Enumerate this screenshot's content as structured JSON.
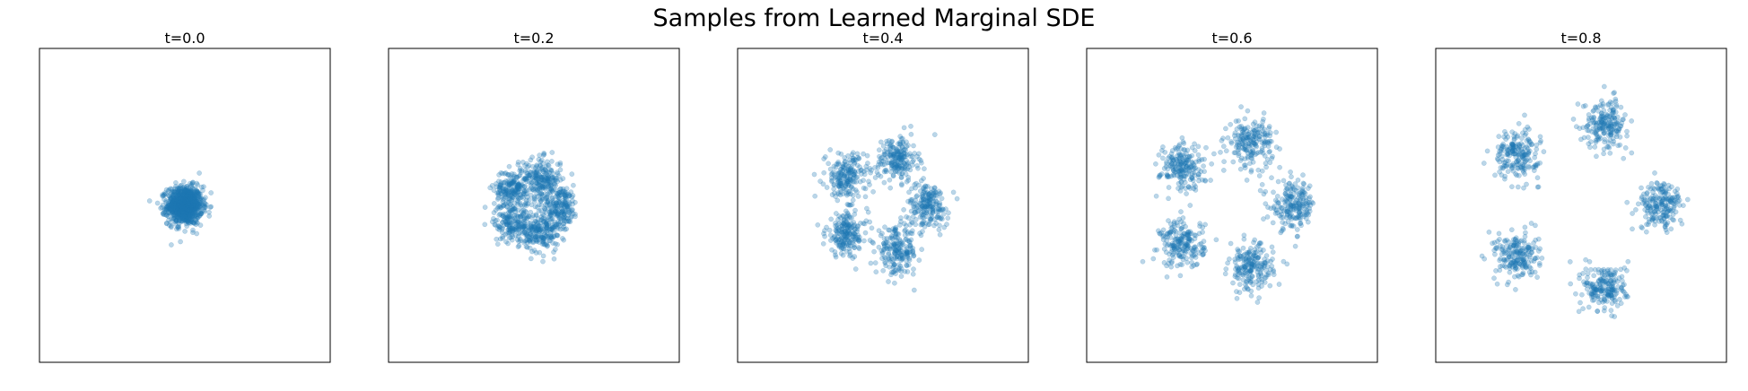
{
  "figure": {
    "suptitle": "Samples from Learned Marginal SDE"
  },
  "chart_data": [
    {
      "type": "scatter",
      "title": "t=0.0",
      "xlim": [
        -5,
        5
      ],
      "ylim": [
        -5,
        5
      ],
      "color": "#1f77b4",
      "alpha": 0.3,
      "xticks": "hidden",
      "yticks": "hidden",
      "clusters": [
        {
          "x": 0.0,
          "y": 0.0,
          "std": 0.3,
          "n": 1000
        }
      ]
    },
    {
      "type": "scatter",
      "title": "t=0.2",
      "xlim": [
        -5,
        5
      ],
      "ylim": [
        -5,
        5
      ],
      "color": "#1f77b4",
      "alpha": 0.3,
      "xticks": "hidden",
      "yticks": "hidden",
      "clusters": [
        {
          "x": 0.9,
          "y": 0.0,
          "std": 0.32,
          "n": 200
        },
        {
          "x": 0.28,
          "y": 0.86,
          "std": 0.32,
          "n": 200
        },
        {
          "x": -0.73,
          "y": 0.53,
          "std": 0.32,
          "n": 200
        },
        {
          "x": -0.73,
          "y": -0.53,
          "std": 0.32,
          "n": 200
        },
        {
          "x": 0.28,
          "y": -0.86,
          "std": 0.32,
          "n": 200
        }
      ]
    },
    {
      "type": "scatter",
      "title": "t=0.4",
      "xlim": [
        -5,
        5
      ],
      "ylim": [
        -5,
        5
      ],
      "color": "#1f77b4",
      "alpha": 0.3,
      "xticks": "hidden",
      "yticks": "hidden",
      "clusters": [
        {
          "x": 1.55,
          "y": 0.0,
          "std": 0.36,
          "n": 200
        },
        {
          "x": 0.48,
          "y": 1.47,
          "std": 0.36,
          "n": 200
        },
        {
          "x": -1.25,
          "y": 0.91,
          "std": 0.36,
          "n": 200
        },
        {
          "x": -1.25,
          "y": -0.91,
          "std": 0.36,
          "n": 200
        },
        {
          "x": 0.48,
          "y": -1.47,
          "std": 0.36,
          "n": 200
        }
      ]
    },
    {
      "type": "scatter",
      "title": "t=0.6",
      "xlim": [
        -5,
        5
      ],
      "ylim": [
        -5,
        5
      ],
      "color": "#1f77b4",
      "alpha": 0.3,
      "xticks": "hidden",
      "yticks": "hidden",
      "clusters": [
        {
          "x": 2.1,
          "y": 0.0,
          "std": 0.38,
          "n": 200
        },
        {
          "x": 0.65,
          "y": 2.0,
          "std": 0.38,
          "n": 200
        },
        {
          "x": -1.7,
          "y": 1.23,
          "std": 0.38,
          "n": 200
        },
        {
          "x": -1.7,
          "y": -1.23,
          "std": 0.38,
          "n": 200
        },
        {
          "x": 0.65,
          "y": -2.0,
          "std": 0.38,
          "n": 200
        }
      ]
    },
    {
      "type": "scatter",
      "title": "t=0.8",
      "xlim": [
        -5,
        5
      ],
      "ylim": [
        -5,
        5
      ],
      "color": "#1f77b4",
      "alpha": 0.3,
      "xticks": "hidden",
      "yticks": "hidden",
      "clusters": [
        {
          "x": 2.75,
          "y": 0.0,
          "std": 0.38,
          "n": 200
        },
        {
          "x": 0.85,
          "y": 2.62,
          "std": 0.38,
          "n": 200
        },
        {
          "x": -2.22,
          "y": 1.62,
          "std": 0.38,
          "n": 200
        },
        {
          "x": -2.22,
          "y": -1.62,
          "std": 0.38,
          "n": 200
        },
        {
          "x": 0.85,
          "y": -2.62,
          "std": 0.38,
          "n": 200
        }
      ]
    }
  ]
}
